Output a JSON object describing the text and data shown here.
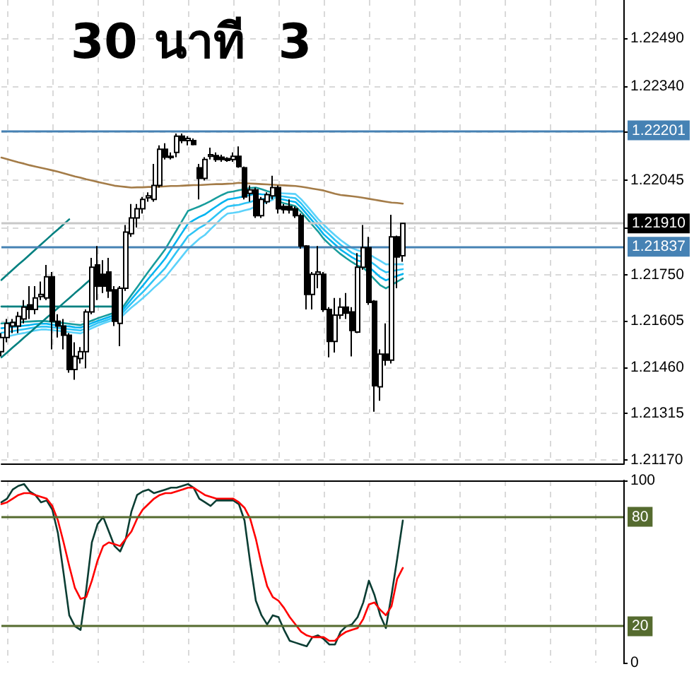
{
  "chart_data": [
    {
      "type": "candlestick",
      "title": "30 นาที  3",
      "categories": [
        null,
        null,
        null,
        null,
        null,
        null,
        null,
        null,
        null,
        null,
        null,
        null,
        null,
        null,
        null,
        null,
        null,
        null,
        null,
        null,
        null,
        null,
        null,
        null,
        null,
        null,
        null,
        null,
        null,
        null,
        null,
        null,
        null,
        null,
        null,
        null,
        null,
        null,
        null,
        null,
        null,
        null,
        null,
        null,
        null,
        null,
        null,
        null,
        null,
        null,
        null,
        null,
        null,
        null,
        null,
        null,
        null,
        null,
        null,
        null,
        null,
        null,
        null,
        null,
        null,
        null,
        null,
        null,
        null,
        null,
        null,
        null,
        null,
        null,
        null,
        null,
        null,
        null,
        null,
        null,
        null,
        null,
        null,
        null,
        null,
        null,
        null,
        null,
        null,
        null,
        null,
        null,
        null,
        null,
        null,
        null,
        null,
        null,
        null,
        null,
        null,
        null,
        null,
        null,
        null,
        null,
        null,
        null,
        null,
        null,
        null
      ],
      "ohlc": [
        [
          1.21509,
          1.21567,
          1.21494,
          1.21553
        ],
        [
          1.21553,
          1.21611,
          1.21538,
          1.21597
        ],
        [
          1.21589,
          1.21611,
          1.21567,
          1.216
        ],
        [
          1.21589,
          1.21633,
          1.21567,
          1.21619
        ],
        [
          1.21611,
          1.2167,
          1.21597,
          1.21648
        ],
        [
          1.21655,
          1.21714,
          1.21611,
          1.21641
        ],
        [
          1.21641,
          1.21714,
          1.21626,
          1.21677
        ],
        [
          1.21681,
          1.21728,
          1.2167,
          1.21688
        ],
        [
          1.21677,
          1.2178,
          1.2167,
          1.21743
        ],
        [
          1.21743,
          1.21758,
          1.21516,
          1.21604
        ],
        [
          1.21604,
          1.21626,
          1.21553,
          1.21589
        ],
        [
          1.21589,
          1.21611,
          1.21516,
          1.2156
        ],
        [
          1.2156,
          1.21567,
          1.21443,
          1.21453
        ],
        [
          1.21453,
          1.21538,
          1.21421,
          1.21494
        ],
        [
          1.21487,
          1.21523,
          1.21472,
          1.21509
        ],
        [
          1.21509,
          1.21641,
          1.21457,
          1.21633
        ],
        [
          1.21633,
          1.21802,
          1.21626,
          1.21773
        ],
        [
          1.2178,
          1.21839,
          1.2167,
          1.21714
        ],
        [
          1.21751,
          1.21795,
          1.21692,
          1.21714
        ],
        [
          1.21758,
          1.21802,
          1.21677,
          1.21699
        ],
        [
          1.21702,
          1.21714,
          1.21589,
          1.21604
        ],
        [
          1.21597,
          1.21714,
          1.21526,
          1.21707
        ],
        [
          1.21707,
          1.21905,
          1.21699,
          1.21883
        ],
        [
          1.21878,
          1.21971,
          1.21868,
          1.21927
        ],
        [
          1.21927,
          1.21971,
          1.21897,
          1.21956
        ],
        [
          1.21956,
          1.21993,
          1.21941,
          1.21985
        ],
        [
          1.2199,
          1.22007,
          1.21978,
          1.21996
        ],
        [
          1.21985,
          1.22096,
          1.21978,
          1.22029
        ],
        [
          1.22029,
          1.22154,
          1.22022,
          1.22142
        ],
        [
          1.22142,
          1.22161,
          1.2211,
          1.22117
        ],
        [
          1.2212,
          1.22132,
          1.2211,
          1.22116
        ],
        [
          1.22132,
          1.22191,
          1.22117,
          1.22183
        ],
        [
          1.22183,
          1.22191,
          1.22161,
          1.22169
        ],
        [
          1.22169,
          1.22183,
          1.22154,
          1.22176
        ],
        [
          1.22169,
          1.22176,
          1.22154,
          1.22157
        ],
        [
          1.22084,
          1.22096,
          1.21985,
          1.22051
        ],
        [
          1.22051,
          1.22117,
          1.22044,
          1.2211
        ],
        [
          1.2212,
          1.22147,
          1.2211,
          1.22125
        ],
        [
          1.22122,
          1.22132,
          1.22103,
          1.2211
        ],
        [
          1.22117,
          1.22125,
          1.22103,
          1.2211
        ],
        [
          1.22113,
          1.22117,
          1.22103,
          1.22107
        ],
        [
          1.2211,
          1.22132,
          1.22103,
          1.2212
        ],
        [
          1.2212,
          1.22151,
          1.22084,
          1.22088
        ],
        [
          1.22084,
          1.22088,
          1.21985,
          1.21993
        ],
        [
          1.22004,
          1.22029,
          1.21978,
          1.22015
        ],
        [
          1.22015,
          1.22022,
          1.21927,
          1.21934
        ],
        [
          1.21934,
          1.21993,
          1.21927,
          1.21985
        ],
        [
          1.21978,
          1.22007,
          1.21971,
          1.22
        ],
        [
          1.21996,
          1.22059,
          1.21985,
          1.22022
        ],
        [
          1.22022,
          1.22029,
          1.21941,
          1.21956
        ],
        [
          1.21963,
          1.21971,
          1.21941,
          1.21953
        ],
        [
          1.21963,
          1.21985,
          1.21941,
          1.21952
        ],
        [
          1.21956,
          1.21963,
          1.21927,
          1.21934
        ],
        [
          1.21934,
          1.21941,
          1.21831,
          1.21839
        ],
        [
          1.21839,
          1.21842,
          1.21641,
          1.21688
        ],
        [
          1.21688,
          1.21758,
          1.21641,
          1.21751
        ],
        [
          1.21751,
          1.21839,
          1.21707,
          1.21758
        ],
        [
          1.21751,
          1.21758,
          1.21633,
          1.21641
        ],
        [
          1.21641,
          1.21648,
          1.21491,
          1.21541
        ],
        [
          1.21541,
          1.21677,
          1.21506,
          1.21623
        ],
        [
          1.21623,
          1.21677,
          1.21611,
          1.21648
        ],
        [
          1.21648,
          1.21692,
          1.21611,
          1.21629
        ],
        [
          1.21633,
          1.21648,
          1.21494,
          1.21575
        ],
        [
          1.2157,
          1.21817,
          1.21567,
          1.21773
        ],
        [
          1.21773,
          1.21905,
          1.21765,
          1.21834
        ],
        [
          1.21834,
          1.21868,
          1.21655,
          1.21663
        ],
        [
          1.21666,
          1.2167,
          1.21321,
          1.21402
        ],
        [
          1.21399,
          1.21516,
          1.21355,
          1.21501
        ],
        [
          1.21501,
          1.21597,
          1.21465,
          1.21482
        ],
        [
          1.21482,
          1.21937,
          1.21472,
          1.21868
        ],
        [
          1.21868,
          1.21872,
          1.21707,
          1.21805
        ],
        [
          1.21809,
          1.21912,
          1.2179,
          1.2191
        ],
        null,
        null,
        null,
        null,
        null,
        null,
        null,
        null,
        null,
        null,
        null,
        null,
        null,
        null,
        null,
        null,
        null,
        null,
        null,
        null,
        null,
        null,
        null,
        null,
        null,
        null,
        null,
        null,
        null,
        null,
        null,
        null,
        null,
        null,
        null,
        null,
        null,
        null,
        null
      ],
      "series": [
        {
          "type": "line",
          "color": "#a47c48",
          "values": [
            1.22116,
            1.22111,
            1.22106,
            1.22101,
            1.22097,
            1.22092,
            1.22088,
            1.22084,
            1.2208,
            1.22076,
            1.22072,
            1.22067,
            1.22062,
            1.22057,
            1.22053,
            1.22048,
            1.22044,
            1.2204,
            1.22036,
            1.22032,
            1.22028,
            1.22026,
            1.22024,
            1.22022,
            1.22023,
            1.22023,
            1.22024,
            1.22024,
            1.22025,
            1.22026,
            1.22027,
            1.22027,
            1.22028,
            1.22029,
            1.2203,
            1.2203,
            1.22031,
            1.22032,
            1.22033,
            1.22033,
            1.22034,
            1.22035,
            1.22037,
            1.22036,
            1.22035,
            1.22034,
            1.22033,
            1.22032,
            1.22031,
            1.2203,
            1.22029,
            1.22028,
            1.22027,
            1.22025,
            1.22022,
            1.22019,
            1.22016,
            1.22013,
            1.22008,
            1.22003,
            1.21999,
            1.21997,
            1.21995,
            1.21993,
            1.2199,
            1.21987,
            1.21984,
            1.21981,
            1.21978,
            1.21975,
            1.21974,
            1.21972,
            null,
            null,
            null,
            null,
            null,
            null,
            null,
            null,
            null,
            null,
            null,
            null,
            null,
            null,
            null,
            null,
            null,
            null,
            null,
            null,
            null,
            null,
            null,
            null,
            null,
            null,
            null,
            null,
            null,
            null,
            null,
            null,
            null,
            null,
            null,
            null,
            null,
            null,
            null
          ]
        },
        {
          "type": "line",
          "color": "#179c9c",
          "values": [
            1.21597,
            1.21598,
            1.21599,
            1.216,
            1.21602,
            1.21603,
            1.21604,
            1.21605,
            1.21604,
            1.21602,
            1.216,
            1.21598,
            1.21596,
            1.21594,
            1.21592,
            1.21599,
            1.21606,
            1.21613,
            1.21619,
            1.21625,
            1.21631,
            1.21636,
            1.21661,
            1.21686,
            1.2171,
            1.21735,
            1.21759,
            1.21783,
            1.21806,
            1.2183,
            1.2186,
            1.21889,
            1.21919,
            1.21949,
            1.21956,
            1.21963,
            1.21971,
            1.2198,
            1.2199,
            1.21999,
            1.22007,
            1.2201,
            1.22014,
            1.22017,
            1.22021,
            1.22022,
            1.22017,
            1.22011,
            1.22006,
            1.21979,
            1.21973,
            1.21969,
            1.21964,
            1.21946,
            1.21926,
            1.21905,
            1.21885,
            1.21862,
            1.21845,
            1.21829,
            1.21814,
            1.21801,
            1.21789,
            1.21778,
            1.21772,
            1.21754,
            1.21735,
            1.21717,
            1.21707,
            1.21717,
            1.21728,
            1.21738,
            null,
            null,
            null,
            null,
            null,
            null,
            null,
            null,
            null,
            null,
            null,
            null,
            null,
            null,
            null,
            null,
            null,
            null,
            null,
            null,
            null,
            null,
            null,
            null,
            null,
            null,
            null,
            null,
            null,
            null,
            null,
            null,
            null,
            null,
            null,
            null,
            null,
            null,
            null
          ]
        },
        {
          "type": "line",
          "color": "#00b4f0",
          "values": [
            1.21582,
            1.21584,
            1.21586,
            1.21588,
            1.2159,
            1.21592,
            1.21595,
            1.21596,
            1.21596,
            1.21593,
            1.21591,
            1.21589,
            1.21588,
            1.21585,
            1.21584,
            1.21591,
            1.21598,
            1.21605,
            1.21611,
            1.21617,
            1.21623,
            1.21629,
            1.21651,
            1.21673,
            1.21694,
            1.21715,
            1.21737,
            1.21758,
            1.21779,
            1.21801,
            1.21828,
            1.21855,
            1.21882,
            1.21909,
            1.2192,
            1.2193,
            1.21938,
            1.21951,
            1.21963,
            1.21975,
            1.21985,
            1.21988,
            1.21991,
            1.21995,
            1.21999,
            1.22003,
            1.22001,
            1.22,
            1.21999,
            1.21987,
            1.21984,
            1.2198,
            1.21977,
            1.2196,
            1.21939,
            1.21918,
            1.21898,
            1.21876,
            1.2186,
            1.21844,
            1.21828,
            1.21816,
            1.21804,
            1.21794,
            1.21789,
            1.21774,
            1.21758,
            1.21742,
            1.21732,
            1.21739,
            1.21746,
            1.21752,
            null,
            null,
            null,
            null,
            null,
            null,
            null,
            null,
            null,
            null,
            null,
            null,
            null,
            null,
            null,
            null,
            null,
            null,
            null,
            null,
            null,
            null,
            null,
            null,
            null,
            null,
            null,
            null,
            null,
            null,
            null,
            null,
            null,
            null,
            null,
            null,
            null,
            null,
            null
          ]
        },
        {
          "type": "line",
          "color": "#2ec4f5",
          "values": [
            1.21568,
            1.2157,
            1.21573,
            1.21576,
            1.21579,
            1.21582,
            1.21585,
            1.21587,
            1.21587,
            1.21585,
            1.21583,
            1.21581,
            1.21579,
            1.21577,
            1.21575,
            1.21582,
            1.2159,
            1.21598,
            1.21604,
            1.2161,
            1.21616,
            1.21622,
            1.21641,
            1.2166,
            1.21678,
            1.21695,
            1.21714,
            1.21734,
            1.21752,
            1.21771,
            1.21796,
            1.21821,
            1.21845,
            1.2187,
            1.21883,
            1.21896,
            1.21906,
            1.21921,
            1.21936,
            1.21951,
            1.21963,
            1.21966,
            1.21968,
            1.21973,
            1.21977,
            1.21983,
            1.21986,
            1.21989,
            1.21991,
            1.21996,
            1.21994,
            1.21991,
            1.21989,
            1.21973,
            1.21952,
            1.21932,
            1.21911,
            1.21891,
            1.21875,
            1.21858,
            1.21843,
            1.21831,
            1.21818,
            1.2181,
            1.21805,
            1.21794,
            1.21781,
            1.21767,
            1.21757,
            1.2176,
            1.21764,
            1.21767,
            null,
            null,
            null,
            null,
            null,
            null,
            null,
            null,
            null,
            null,
            null,
            null,
            null,
            null,
            null,
            null,
            null,
            null,
            null,
            null,
            null,
            null,
            null,
            null,
            null,
            null,
            null,
            null,
            null,
            null,
            null,
            null,
            null,
            null,
            null,
            null,
            null,
            null,
            null
          ]
        },
        {
          "type": "line",
          "color": "#5cd2fa",
          "values": [
            null,
            1.21556,
            1.2156,
            1.21564,
            1.21567,
            1.21571,
            1.21575,
            1.21578,
            1.21578,
            1.21576,
            1.21574,
            1.21572,
            1.2157,
            1.21568,
            1.21566,
            1.21574,
            1.21582,
            1.2159,
            1.21597,
            1.21603,
            1.21609,
            1.21614,
            1.21631,
            1.21647,
            1.21661,
            1.21676,
            1.21692,
            1.21709,
            1.21725,
            1.21742,
            1.21764,
            1.21786,
            1.21808,
            1.2183,
            1.21846,
            1.21862,
            1.21874,
            1.21892,
            1.21909,
            1.21927,
            1.21941,
            1.21943,
            1.21946,
            1.21951,
            1.21955,
            1.21964,
            1.2197,
            1.21977,
            1.21984,
            1.22005,
            1.22004,
            1.22003,
            1.22002,
            1.21986,
            1.21966,
            1.21945,
            1.21924,
            1.21906,
            1.21889,
            1.21873,
            1.21858,
            1.21845,
            1.21833,
            1.21826,
            1.21821,
            1.21814,
            1.21803,
            1.21793,
            1.21782,
            1.21782,
            1.21782,
            1.21782,
            null,
            null,
            null,
            null,
            null,
            null,
            null,
            null,
            null,
            null,
            null,
            null,
            null,
            null,
            null,
            null,
            null,
            null,
            null,
            null,
            null,
            null,
            null,
            null,
            null,
            null,
            null,
            null,
            null,
            null,
            null,
            null,
            null,
            null,
            null,
            null,
            null,
            null,
            null
          ]
        },
        {
          "type": "line",
          "color": "#008080",
          "values": [
            1.21733,
            1.21749,
            1.21765,
            1.21781,
            1.21796,
            1.21812,
            1.21828,
            1.21844,
            1.2186,
            1.21876,
            1.21891,
            1.21907,
            1.21923,
            null,
            null,
            null,
            null,
            null,
            null,
            null,
            null,
            null,
            null,
            null,
            null,
            null,
            null,
            null,
            null,
            null,
            null,
            null,
            null,
            null,
            null,
            null,
            null,
            null,
            null,
            null,
            null,
            null,
            null,
            null,
            null,
            null,
            null,
            null,
            null,
            null,
            null,
            null,
            null,
            null,
            null,
            null,
            null,
            null,
            null,
            null,
            null,
            null,
            null,
            null,
            null,
            null,
            null,
            null,
            null,
            null,
            null,
            null,
            null,
            null,
            null,
            null,
            null,
            null,
            null,
            null,
            null,
            null,
            null,
            null,
            null,
            null,
            null,
            null,
            null,
            null,
            null,
            null,
            null,
            null,
            null,
            null,
            null,
            null,
            null,
            null,
            null,
            null,
            null,
            null,
            null,
            null,
            null,
            null,
            null,
            null,
            null
          ]
        },
        {
          "type": "line",
          "color": "#008080",
          "values": [
            1.21491,
            1.21506,
            1.21522,
            1.21537,
            1.21553,
            1.21568,
            1.21584,
            1.21599,
            1.21615,
            1.2163,
            1.21645,
            1.21661,
            1.21676,
            1.21692,
            1.21707,
            1.21723,
            1.21738,
            null,
            null,
            null,
            null,
            null,
            null,
            null,
            null,
            null,
            null,
            null,
            null,
            null,
            null,
            null,
            null,
            null,
            null,
            null,
            null,
            null,
            null,
            null,
            null,
            null,
            null,
            null,
            null,
            null,
            null,
            null,
            null,
            null,
            null,
            null,
            null,
            null,
            null,
            null,
            null,
            null,
            null,
            null,
            null,
            null,
            null,
            null,
            null,
            null,
            null,
            null,
            null,
            null,
            null,
            null,
            null,
            null,
            null,
            null,
            null,
            null,
            null,
            null,
            null,
            null,
            null,
            null,
            null,
            null,
            null,
            null,
            null,
            null,
            null,
            null,
            null,
            null,
            null,
            null,
            null,
            null,
            null,
            null,
            null,
            null,
            null,
            null,
            null,
            null,
            null,
            null,
            null,
            null,
            null
          ]
        },
        {
          "type": "line",
          "color": "#008080",
          "values": [
            1.2165,
            1.2165,
            1.2165,
            1.2165,
            1.2165,
            1.2165,
            1.2165,
            1.2165,
            1.2165,
            1.2165,
            1.2165,
            1.2165,
            1.2165,
            1.2165,
            1.2165,
            1.2165,
            1.2165,
            1.2165,
            1.2165,
            1.2165,
            1.2165,
            null,
            null,
            null,
            null,
            null,
            null,
            null,
            null,
            null,
            null,
            null,
            null,
            null,
            null,
            null,
            null,
            null,
            null,
            null,
            null,
            null,
            null,
            null,
            null,
            null,
            null,
            null,
            null,
            null,
            null,
            null,
            null,
            null,
            null,
            null,
            null,
            null,
            null,
            null,
            null,
            null,
            null,
            null,
            null,
            null,
            null,
            null,
            null,
            null,
            null,
            null,
            null,
            null,
            null,
            null,
            null,
            null,
            null,
            null,
            null,
            null,
            null,
            null,
            null,
            null,
            null,
            null,
            null,
            null,
            null,
            null,
            null,
            null,
            null,
            null,
            null,
            null,
            null,
            null,
            null,
            null,
            null,
            null,
            null,
            null,
            null,
            null,
            null,
            null,
            null
          ]
        }
      ],
      "ylim": [
        1.21157,
        1.22609
      ],
      "yticks": [
        {
          "value": 1.2249,
          "label": "1.22490"
        },
        {
          "value": 1.2234,
          "label": "1.22340"
        },
        {
          "value": 1.22195,
          "label": null
        },
        1.22045,
        {
          "value": 1.21895,
          "label": null
        },
        {
          "value": 1.2175,
          "label": "1.21750"
        },
        1.21605,
        {
          "value": 1.2146,
          "label": "1.21460"
        },
        1.21315,
        {
          "value": 1.2117,
          "label": "1.21170"
        }
      ],
      "ref_lines": [
        {
          "axis": "y",
          "value": 1.22201,
          "label": "1.22201",
          "color": "#4682b4"
        },
        {
          "axis": "y",
          "value": 1.21837,
          "label": "1.21837",
          "color": "#4682b4"
        },
        {
          "axis": "y",
          "value": 1.2191,
          "color": "#c8c8c8"
        }
      ],
      "annotations": [
        {
          "text": "1.21910",
          "y": 1.2191
        }
      ],
      "grid": true,
      "tick_labels": "y"
    },
    {
      "type": "line",
      "categories": [
        null,
        null,
        null,
        null,
        null,
        null,
        null,
        null,
        null,
        null,
        null,
        null,
        null,
        null,
        null,
        null,
        null,
        null,
        null,
        null,
        null,
        null,
        null,
        null,
        null,
        null,
        null,
        null,
        null,
        null,
        null,
        null,
        null,
        null,
        null,
        null,
        null,
        null,
        null,
        null,
        null,
        null,
        null,
        null,
        null,
        null,
        null,
        null,
        null,
        null,
        null,
        null,
        null,
        null,
        null,
        null,
        null,
        null,
        null,
        null,
        null,
        null,
        null,
        null,
        null,
        null,
        null,
        null,
        null,
        null,
        null,
        null,
        null,
        null,
        null,
        null,
        null,
        null,
        null,
        null,
        null,
        null,
        null,
        null,
        null,
        null,
        null,
        null,
        null,
        null,
        null,
        null,
        null,
        null,
        null,
        null,
        null,
        null,
        null,
        null,
        null,
        null,
        null,
        null,
        null,
        null,
        null,
        null,
        null,
        null,
        null
      ],
      "series": [
        {
          "color": "#0b3d33",
          "values": [
            88,
            90,
            95,
            97,
            98,
            94,
            92,
            88,
            89,
            84,
            71,
            49,
            26,
            20,
            18,
            40,
            66,
            76,
            80,
            72,
            64,
            61,
            68,
            83,
            92,
            94,
            95,
            93,
            94,
            95,
            96,
            96,
            97,
            98,
            96,
            90,
            88,
            86,
            89,
            89,
            89,
            89,
            87,
            78,
            55,
            34,
            26,
            21,
            26,
            25,
            18,
            12,
            11,
            10,
            9,
            14,
            15,
            13,
            10,
            10,
            17,
            20,
            21,
            25,
            33,
            45,
            37,
            26,
            19,
            37,
            57,
            78,
            null,
            null,
            null,
            null,
            null,
            null,
            null,
            null,
            null,
            null,
            null,
            null,
            null,
            null,
            null,
            null,
            null,
            null,
            null,
            null,
            null,
            null,
            null,
            null,
            null,
            null,
            null,
            null,
            null,
            null,
            null,
            null,
            null,
            null,
            null,
            null,
            null,
            null,
            null
          ]
        },
        {
          "color": "#ff0000",
          "values": [
            87,
            88,
            90,
            92,
            93,
            93,
            92,
            91,
            90,
            86,
            78,
            66,
            53,
            41,
            35,
            36,
            45,
            56,
            64,
            66,
            65,
            64,
            68,
            72,
            79,
            84,
            87,
            90,
            92,
            93,
            93,
            94,
            95,
            96,
            96,
            94,
            92,
            91,
            90,
            90,
            90,
            90,
            88,
            85,
            79,
            68,
            54,
            42,
            36,
            34,
            30,
            25,
            21,
            17,
            15,
            14,
            14,
            14,
            12,
            12,
            15,
            17,
            18,
            19,
            24,
            32,
            33,
            29,
            26,
            31,
            46,
            52,
            null,
            null,
            null,
            null,
            null,
            null,
            null,
            null,
            null,
            null,
            null,
            null,
            null,
            null,
            null,
            null,
            null,
            null,
            null,
            null,
            null,
            null,
            null,
            null,
            null,
            null,
            null,
            null,
            null,
            null,
            null,
            null,
            null,
            null,
            null,
            null,
            null,
            null,
            null
          ]
        }
      ],
      "ylim": [
        0,
        100
      ],
      "yticks": [
        0,
        100
      ],
      "ref_lines": [
        {
          "axis": "y",
          "value": 80,
          "label": "80",
          "color": "#556b2f"
        },
        {
          "axis": "y",
          "value": 20,
          "label": "20",
          "color": "#556b2f"
        }
      ],
      "grid": "x",
      "tick_labels": "y"
    }
  ]
}
